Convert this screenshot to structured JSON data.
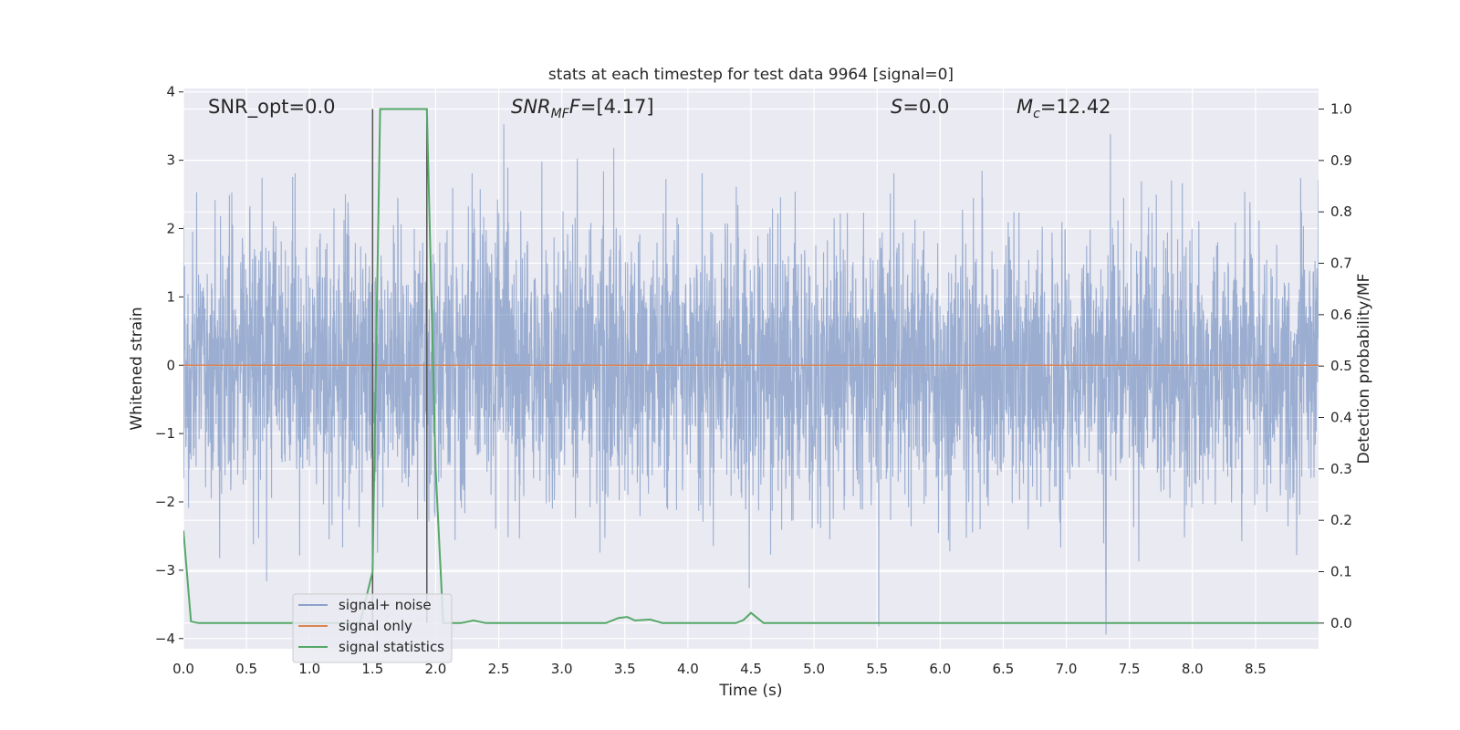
{
  "colors": {
    "plot_bg": "#eaeaf2",
    "grid": "#ffffff",
    "signal_noise": "#4c72b0",
    "signal_only": "#dd8452",
    "signal_statistics": "#55a868",
    "vline": "#555555",
    "text": "#262626"
  },
  "chart_data": {
    "type": "line",
    "title": "stats at each timestep for test data 9964 [signal=0]",
    "xlabel": "Time (s)",
    "ylabel_left": "Whitened strain",
    "ylabel_right": "Detection probability/MF",
    "xlim": [
      0.0,
      9.0
    ],
    "ylim_left": [
      -4.15,
      4.05
    ],
    "ylim_right": [
      -0.05,
      1.04
    ],
    "x_ticks": [
      "0.0",
      "0.5",
      "1.0",
      "1.5",
      "2.0",
      "2.5",
      "3.0",
      "3.5",
      "4.0",
      "4.5",
      "5.0",
      "5.5",
      "6.0",
      "6.5",
      "7.0",
      "7.5",
      "8.0",
      "8.5"
    ],
    "y_ticks_left": [
      "4",
      "3",
      "2",
      "1",
      "0",
      "−1",
      "−2",
      "−3",
      "−4"
    ],
    "y_ticks_right": [
      "1.0",
      "0.9",
      "0.8",
      "0.7",
      "0.6",
      "0.5",
      "0.4",
      "0.3",
      "0.2",
      "0.1",
      "0.0"
    ],
    "grid": true,
    "legend_position": "lower-left",
    "annotations": {
      "snr_opt": "SNR_opt=0.0",
      "snr_mf_name": "SNR",
      "snr_mf_sub": "MF",
      "snr_mf_value": "=[4.17]",
      "s_name": "S",
      "s_value": "=0.0",
      "mc_name": "M",
      "mc_sub": "c",
      "mc_value": "=12.42"
    },
    "vertical_lines_x": [
      1.5,
      1.93
    ],
    "series": [
      {
        "name": "signal+ noise",
        "description_note": "whitened noise, approx gaussian with |peaks| up to ~3.8",
        "sampling_rate": 2048,
        "envelope_min": -4.0,
        "envelope_max": 3.75
      },
      {
        "name": "signal only",
        "x": [
          0.0,
          9.0
        ],
        "y": [
          0.0,
          0.0
        ]
      },
      {
        "name": "signal statistics",
        "x": [
          0.0,
          0.06,
          0.12,
          0.2,
          1.4,
          1.5,
          1.56,
          1.93,
          2.0,
          2.06,
          2.2,
          2.3,
          2.4,
          3.35,
          3.45,
          3.52,
          3.58,
          3.7,
          3.8,
          4.38,
          4.44,
          4.5,
          4.55,
          4.6,
          4.65,
          9.0
        ],
        "y": [
          0.18,
          0.003,
          0.0,
          0.0,
          0.0,
          0.1,
          1.0,
          1.0,
          0.3,
          0.0,
          0.0,
          0.005,
          0.0,
          0.0,
          0.01,
          0.012,
          0.005,
          0.007,
          0.0,
          0.0,
          0.006,
          0.02,
          0.01,
          0.0,
          0.0,
          0.0
        ]
      }
    ]
  }
}
